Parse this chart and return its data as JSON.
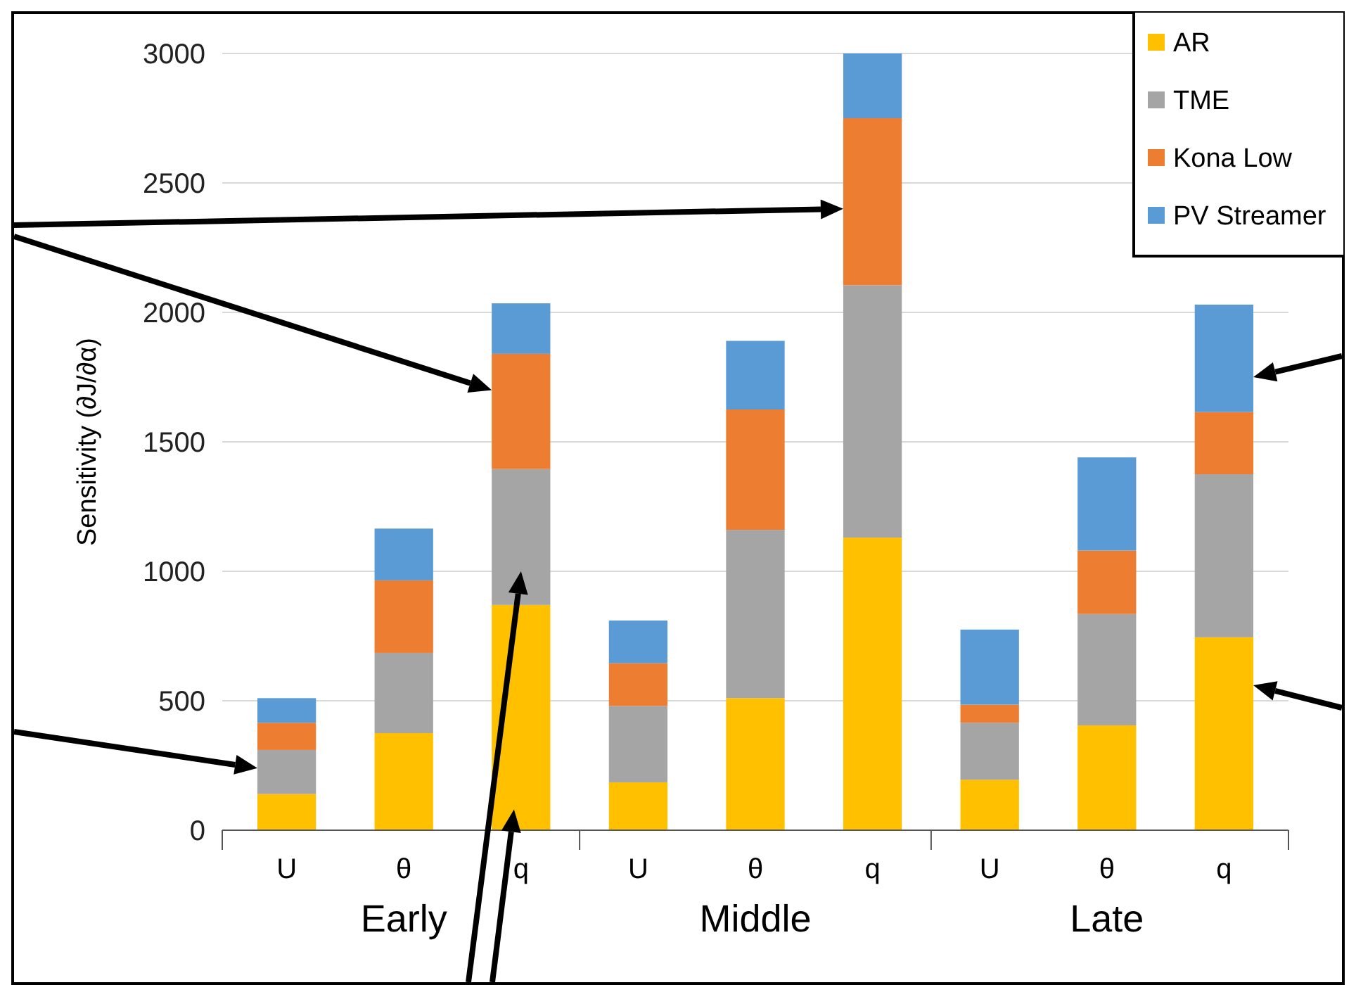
{
  "chart_data": {
    "type": "bar",
    "stacked": true,
    "ylabel": "Sensitivity (∂J/∂α)",
    "categories": [
      "U",
      "θ",
      "q",
      "U",
      "θ",
      "q",
      "U",
      "θ",
      "q"
    ],
    "series": [
      {
        "name": "AR",
        "color": "#ffc000",
        "values": [
          140,
          375,
          870,
          185,
          510,
          1130,
          195,
          405,
          745
        ]
      },
      {
        "name": "TME",
        "color": "#a5a5a5",
        "values": [
          170,
          310,
          525,
          295,
          650,
          975,
          220,
          430,
          630
        ]
      },
      {
        "name": "Kona Low",
        "color": "#ed7d31",
        "values": [
          105,
          280,
          445,
          165,
          465,
          645,
          70,
          245,
          240
        ]
      },
      {
        "name": "PV Streamer",
        "color": "#5b9bd5",
        "values": [
          95,
          200,
          195,
          165,
          265,
          250,
          290,
          360,
          415
        ]
      }
    ],
    "annotations": [
      "Early",
      "Middle",
      "Late"
    ],
    "ylim": [
      0,
      3000
    ],
    "yticks": [
      0,
      500,
      1000,
      1500,
      2000,
      2500,
      3000
    ],
    "grid": "y",
    "legend": "top right"
  }
}
